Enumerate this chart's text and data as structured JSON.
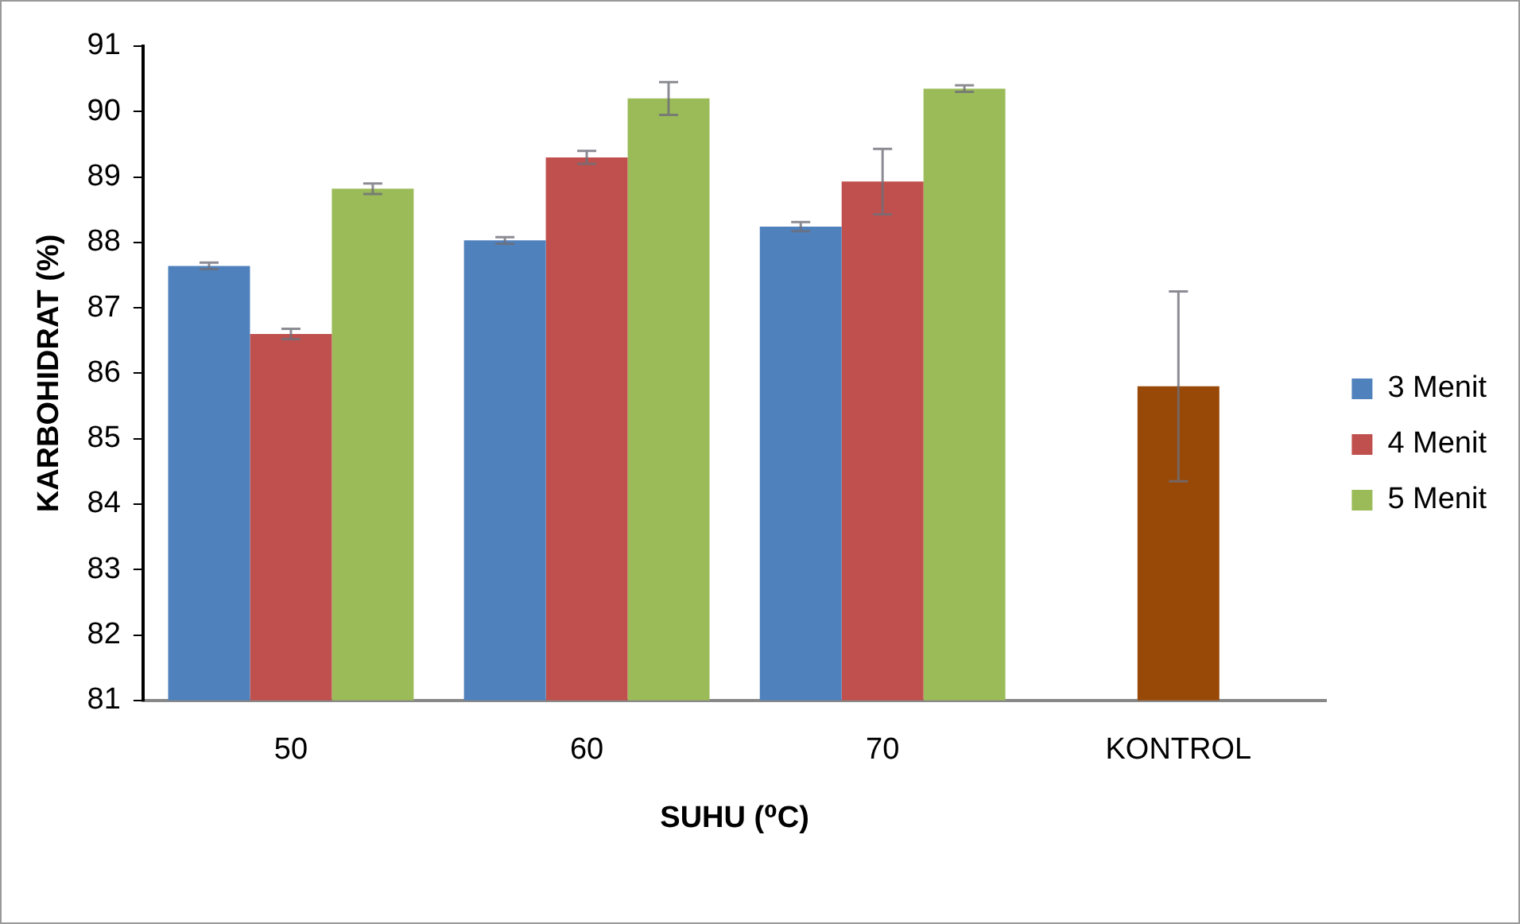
{
  "chart_data": {
    "type": "bar",
    "xlabel": "SUHU (⁰C)",
    "ylabel": "KARBOHIDRAT (%)",
    "categories": [
      "50",
      "60",
      "70",
      "KONTROL"
    ],
    "series": [
      {
        "name": "3 Menit",
        "color": "#4f81bd",
        "values": [
          87.64,
          88.03,
          88.24,
          null
        ],
        "errors": [
          0.05,
          0.05,
          0.07,
          null
        ]
      },
      {
        "name": "4 Menit",
        "color": "#c0504d",
        "colors": [
          "#c0504d",
          "#c0504d",
          "#c0504d",
          "#984807"
        ],
        "values": [
          86.6,
          89.3,
          88.93,
          85.8
        ],
        "errors": [
          0.08,
          0.1,
          0.5,
          1.45
        ]
      },
      {
        "name": "5 Menit",
        "color": "#9bbb59",
        "values": [
          88.82,
          90.2,
          90.35,
          null
        ],
        "errors": [
          0.08,
          0.25,
          0.05,
          null
        ]
      }
    ],
    "ylim": [
      81,
      91
    ],
    "yticks": [
      81,
      82,
      83,
      84,
      85,
      86,
      87,
      88,
      89,
      90,
      91
    ],
    "grid": false,
    "legend": "right"
  }
}
